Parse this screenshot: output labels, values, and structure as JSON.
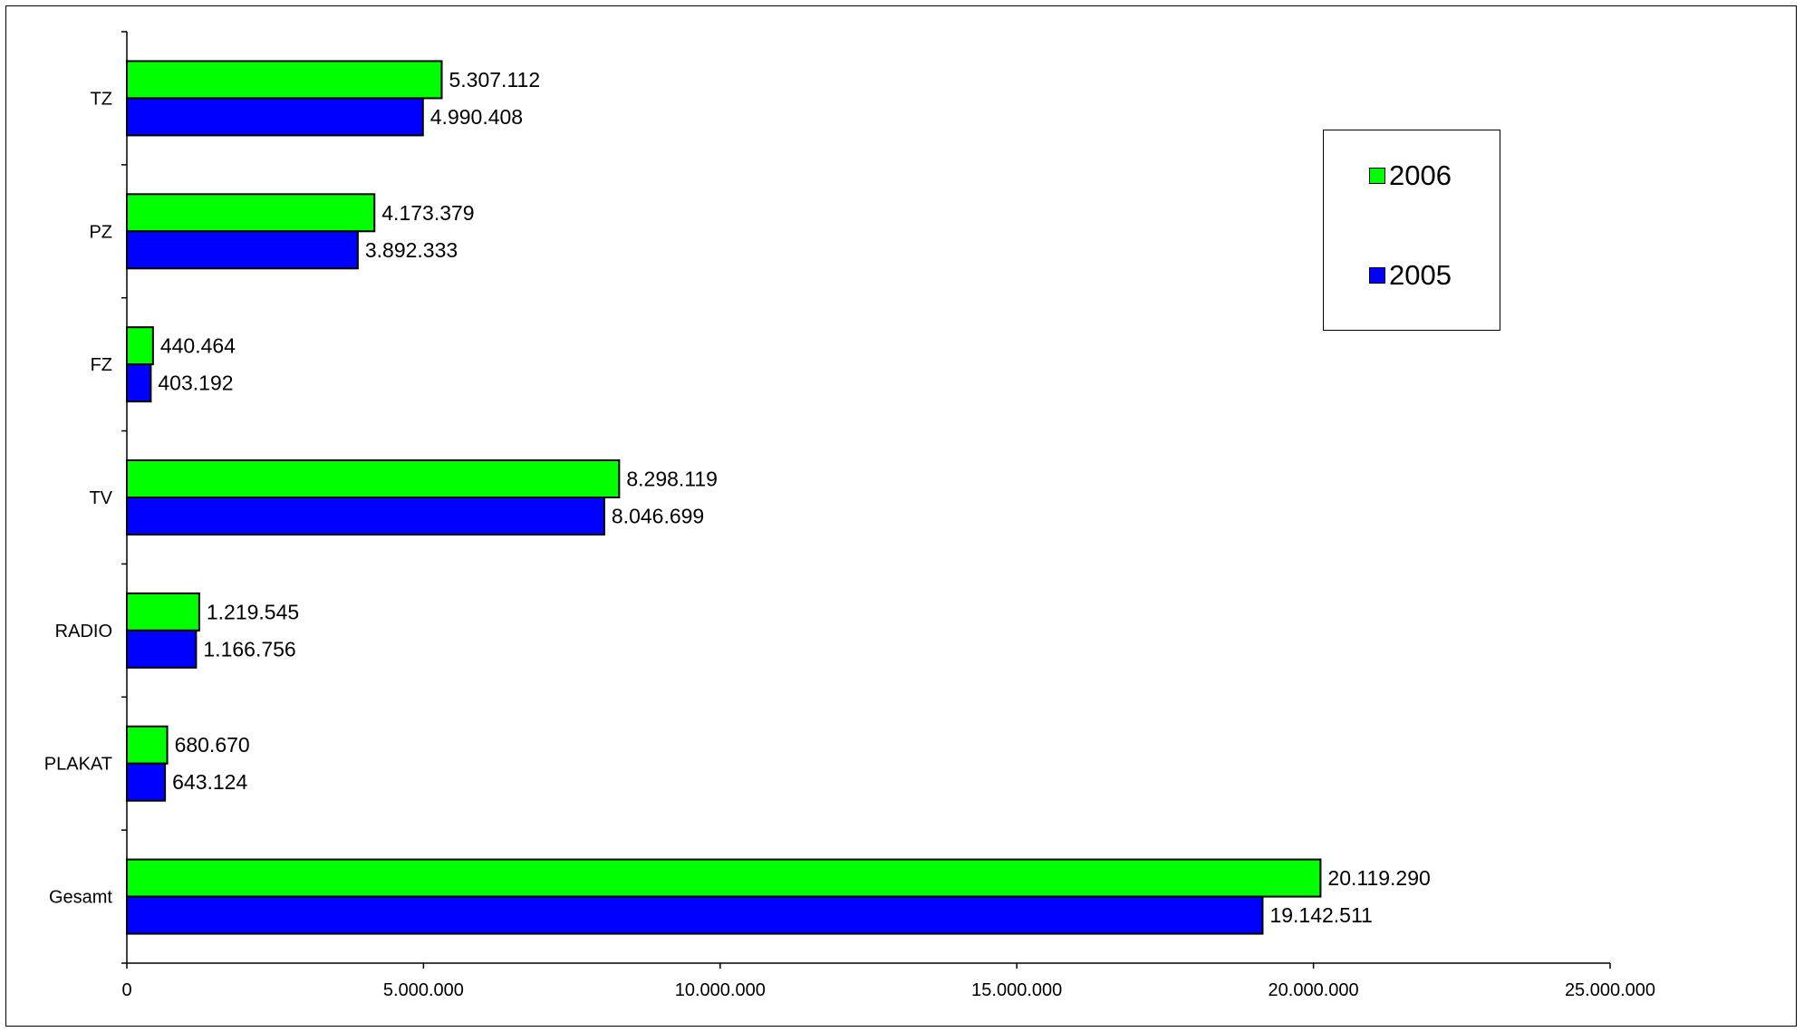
{
  "chart_data": {
    "type": "bar",
    "orientation": "horizontal",
    "categories": [
      "TZ",
      "PZ",
      "FZ",
      "TV",
      "RADIO",
      "PLAKAT",
      "Gesamt"
    ],
    "series": [
      {
        "name": "2006",
        "color": "#00ff00",
        "values": [
          5307112,
          4173379,
          440464,
          8298119,
          1219545,
          680670,
          20119290
        ],
        "labels": [
          "5.307.112",
          "4.173.379",
          "440.464",
          "8.298.119",
          "1.219.545",
          "680.670",
          "20.119.290"
        ]
      },
      {
        "name": "2005",
        "color": "#0000ff",
        "values": [
          4990408,
          3892333,
          403192,
          8046699,
          1166756,
          643124,
          19142511
        ],
        "labels": [
          "4.990.408",
          "3.892.333",
          "403.192",
          "8.046.699",
          "1.166.756",
          "643.124",
          "19.142.511"
        ]
      }
    ],
    "xlim": [
      0,
      25000000
    ],
    "xticks": [
      0,
      5000000,
      10000000,
      15000000,
      20000000,
      25000000
    ],
    "xtick_labels": [
      "0",
      "5.000.000",
      "10.000.000",
      "15.000.000",
      "20.000.000",
      "25.000.000"
    ],
    "grid": false,
    "legend_position": "top-right"
  },
  "legend": {
    "items": [
      {
        "label": "2006",
        "color": "#00ff00"
      },
      {
        "label": "2005",
        "color": "#0000ff"
      }
    ]
  }
}
